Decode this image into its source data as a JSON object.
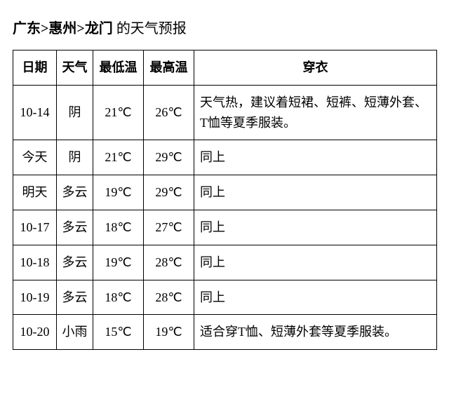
{
  "title": {
    "province": "广东",
    "city": "惠州",
    "district": "龙门",
    "sep": ">",
    "suffix": " 的天气预报"
  },
  "columns": [
    "日期",
    "天气",
    "最低温",
    "最高温",
    "穿衣"
  ],
  "unit": "℃",
  "rows": [
    {
      "date": "10-14",
      "weather": "阴",
      "low": "21",
      "high": "26",
      "dress": "天气热，建议着短裙、短裤、短薄外套、T恤等夏季服装。"
    },
    {
      "date": "今天",
      "weather": "阴",
      "low": "21",
      "high": "29",
      "dress": "同上"
    },
    {
      "date": "明天",
      "weather": "多云",
      "low": "19",
      "high": "29",
      "dress": "同上"
    },
    {
      "date": "10-17",
      "weather": "多云",
      "low": "18",
      "high": "27",
      "dress": "同上"
    },
    {
      "date": "10-18",
      "weather": "多云",
      "low": "19",
      "high": "28",
      "dress": "同上"
    },
    {
      "date": "10-19",
      "weather": "多云",
      "low": "18",
      "high": "28",
      "dress": "同上"
    },
    {
      "date": "10-20",
      "weather": "小雨",
      "low": "15",
      "high": "19",
      "dress": "适合穿T恤、短薄外套等夏季服装。"
    }
  ],
  "colors": {
    "text": "#000000",
    "border": "#000000",
    "background": "#ffffff"
  }
}
